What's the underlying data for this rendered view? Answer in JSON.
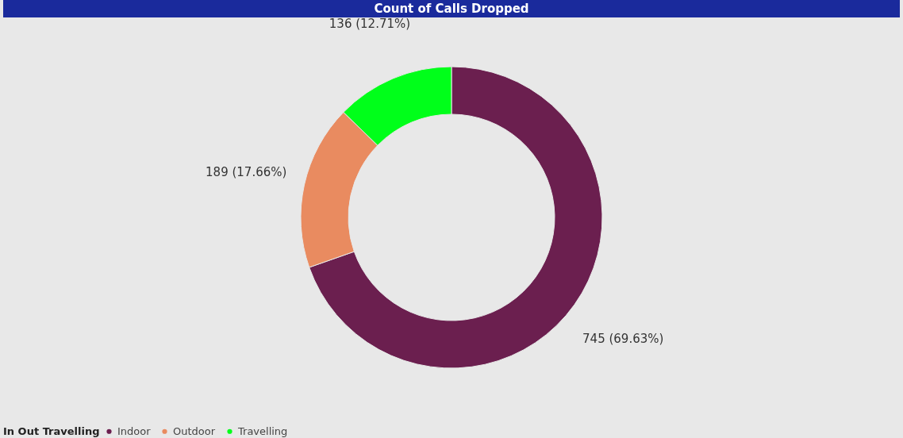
{
  "chart_data": {
    "type": "donut",
    "title": "Count of Calls Dropped",
    "legend_title": "In Out Travelling",
    "categories": [
      "Indoor",
      "Outdoor",
      "Travelling"
    ],
    "values": [
      745,
      189,
      136
    ],
    "colors": [
      "#6b1f4f",
      "#e98b60",
      "#00ff1a"
    ],
    "value_labels": [
      "745 (69.63%)",
      "189 (17.66%)",
      "136 (12.71%)"
    ],
    "legend": "bottom"
  }
}
